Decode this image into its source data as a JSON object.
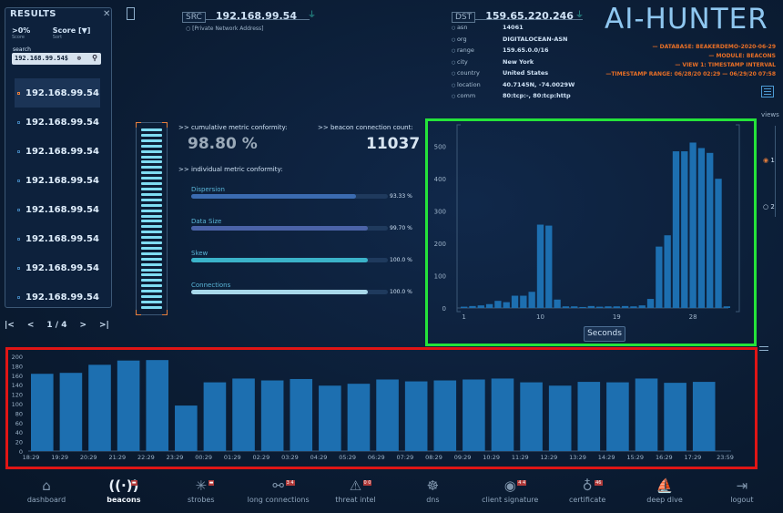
{
  "results_panel": {
    "title": "RESULTS",
    "close": "✕",
    "sort_primary": ">0%",
    "sort_primary_sub": "Score",
    "sort_secondary": "Score [▼]",
    "sort_secondary_sub": "Sort",
    "search_label": "search",
    "search_value": "192.168.99.54$",
    "items": [
      "192.168.99.54",
      "192.168.99.54",
      "192.168.99.54",
      "192.168.99.54",
      "192.168.99.54",
      "192.168.99.54",
      "192.168.99.54",
      "192.168.99.54"
    ],
    "page": "1 / 4"
  },
  "src": {
    "label": "SRC",
    "ip": "192.168.99.54",
    "note": "[Private Network Address]"
  },
  "dst": {
    "label": "DST",
    "ip": "159.65.220.246",
    "fields": [
      {
        "k": "asn",
        "v": "14061"
      },
      {
        "k": "org",
        "v": "DIGITALOCEAN-ASN"
      },
      {
        "k": "range",
        "v": "159.65.0.0/16"
      },
      {
        "k": "city",
        "v": "New York"
      },
      {
        "k": "country",
        "v": "United States"
      },
      {
        "k": "location",
        "v": "40.7145N, -74.0029W"
      },
      {
        "k": "comm",
        "v": "80:tcp:-, 80:tcp:http"
      }
    ]
  },
  "logo": "AI-HUNTER",
  "meta": [
    "— DATABASE: BEAKERDEMO-2020-06-29",
    "— MODULE: BEACONS",
    "— VIEW 1: TIMESTAMP INTERVAL",
    "—TIMESTAMP RANGE: 06/28/20 02:29 — 06/29/20 07:58"
  ],
  "metrics": {
    "cumulative_label": ">> cumulative metric conformity:",
    "cumulative_value": "98.80 %",
    "count_label": ">> beacon connection count:",
    "count_value": "11037",
    "individual_label": ">> individual metric conformity:",
    "items": [
      {
        "label": "Dispersion",
        "pct": "93.33 %",
        "value": 0.9333,
        "color": "#3b6bb0"
      },
      {
        "label": "Data Size",
        "pct": "99.70 %",
        "value": 0.997,
        "color": "#4b63a8"
      },
      {
        "label": "Skew",
        "pct": "100.0 %",
        "value": 1.0,
        "color": "#3bb3c9"
      },
      {
        "label": "Connections",
        "pct": "100.0 %",
        "value": 1.0,
        "color": "#a8d8ea"
      }
    ]
  },
  "views": {
    "label": "views",
    "options": [
      "1",
      "2"
    ],
    "selected": "1"
  },
  "seconds_button": "Seconds",
  "colors": {
    "bar": "#1d6fb0",
    "accent": "#e67e3c",
    "green_frame": "#24e33a",
    "red_frame": "#e01515"
  },
  "chart_data": [
    {
      "type": "bar",
      "title": "",
      "xlabel": "Seconds",
      "ylabel": "",
      "ylim": [
        0,
        550
      ],
      "yticks": [
        0,
        100,
        200,
        300,
        400,
        500
      ],
      "x_ticks": [
        "1",
        "10",
        "19",
        "28"
      ],
      "x": [
        1,
        2,
        3,
        4,
        5,
        6,
        7,
        8,
        9,
        10,
        11,
        12,
        13,
        14,
        15,
        16,
        17,
        18,
        19,
        20,
        21,
        22,
        23,
        24,
        25,
        26,
        27,
        28,
        29,
        30,
        31,
        32
      ],
      "values": [
        4,
        6,
        8,
        12,
        22,
        18,
        38,
        38,
        50,
        258,
        255,
        26,
        5,
        5,
        3,
        6,
        4,
        5,
        5,
        6,
        5,
        8,
        28,
        190,
        225,
        485,
        485,
        512,
        495,
        480,
        400,
        5
      ]
    },
    {
      "type": "bar",
      "title": "",
      "xlabel": "",
      "ylabel": "",
      "ylim": [
        0,
        200
      ],
      "yticks": [
        0,
        20,
        40,
        60,
        80,
        100,
        120,
        140,
        160,
        180,
        200
      ],
      "categories": [
        "18:29",
        "19:29",
        "20:29",
        "21:29",
        "22:29",
        "23:29",
        "00:29",
        "01:29",
        "02:29",
        "03:29",
        "04:29",
        "05:29",
        "06:29",
        "07:29",
        "08:29",
        "09:29",
        "10:29",
        "11:29",
        "12:29",
        "13:29",
        "14:29",
        "15:29",
        "16:29",
        "17:29"
      ],
      "extra_tick": "23:59",
      "values": [
        163,
        165,
        182,
        191,
        192,
        96,
        145,
        153,
        149,
        152,
        138,
        142,
        151,
        147,
        149,
        151,
        153,
        145,
        138,
        146,
        145,
        153,
        144,
        146
      ]
    }
  ],
  "nav": [
    {
      "label": "dashboard",
      "icon": "⌂",
      "badge": ""
    },
    {
      "label": "beacons",
      "icon": "((·))",
      "badge": "▬",
      "active": true
    },
    {
      "label": "strobes",
      "icon": "✳",
      "badge": "▬"
    },
    {
      "label": "long connections",
      "icon": "⚯",
      "badge": "3 4"
    },
    {
      "label": "threat intel",
      "icon": "⚠",
      "badge": "0 0"
    },
    {
      "label": "dns",
      "icon": "☸",
      "badge": ""
    },
    {
      "label": "client signature",
      "icon": "◉",
      "badge": "4 4"
    },
    {
      "label": "certificate",
      "icon": "♁",
      "badge": "46"
    },
    {
      "label": "deep dive",
      "icon": "⛵",
      "badge": ""
    },
    {
      "label": "logout",
      "icon": "⇥",
      "badge": ""
    }
  ]
}
